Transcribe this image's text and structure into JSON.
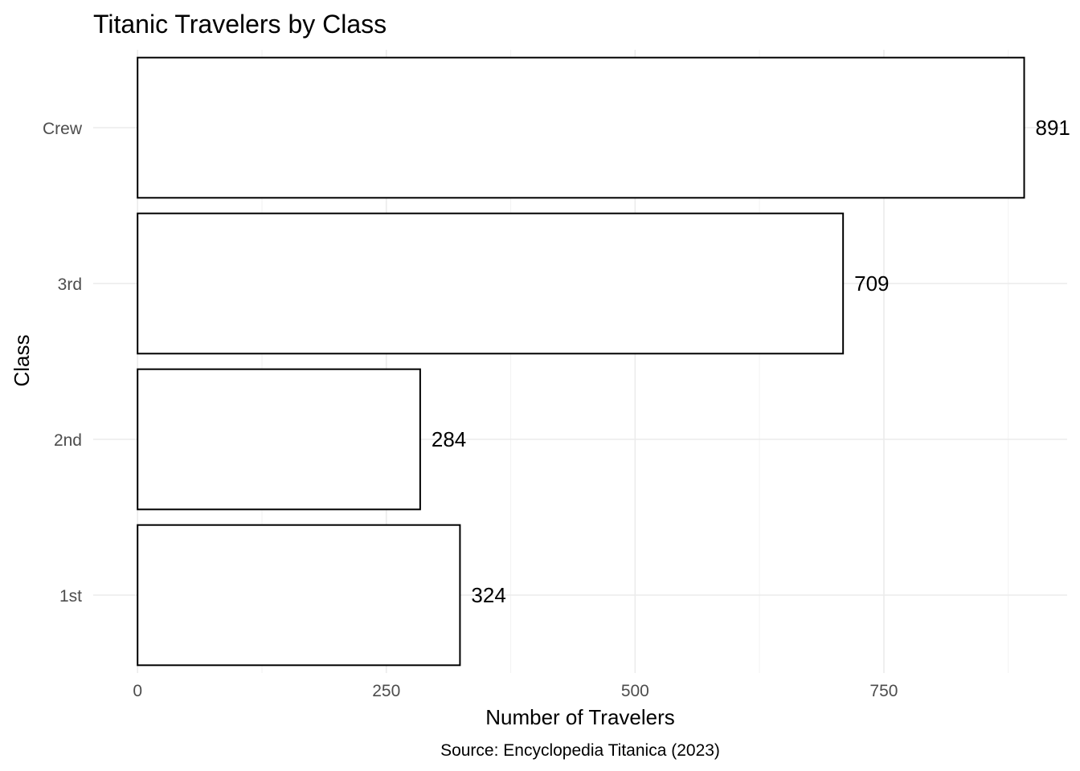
{
  "chart_data": {
    "type": "bar",
    "orientation": "horizontal",
    "title": "Titanic Travelers by Class",
    "xlabel": "Number of Travelers",
    "ylabel": "Class",
    "caption": "Source: Encyclopedia Titanica (2023)",
    "categories": [
      "1st",
      "2nd",
      "3rd",
      "Crew"
    ],
    "values": [
      324,
      284,
      709,
      891
    ],
    "value_labels": [
      "324",
      "284",
      "709",
      "891"
    ],
    "xlim": [
      0,
      942
    ],
    "x_ticks": [
      0,
      250,
      500,
      750
    ],
    "x_tick_labels": [
      "0",
      "250",
      "500",
      "750"
    ],
    "grid": true,
    "colors": {
      "bar_fill": "#ffffff",
      "bar_stroke": "#000000",
      "grid": "#ebebeb"
    }
  }
}
